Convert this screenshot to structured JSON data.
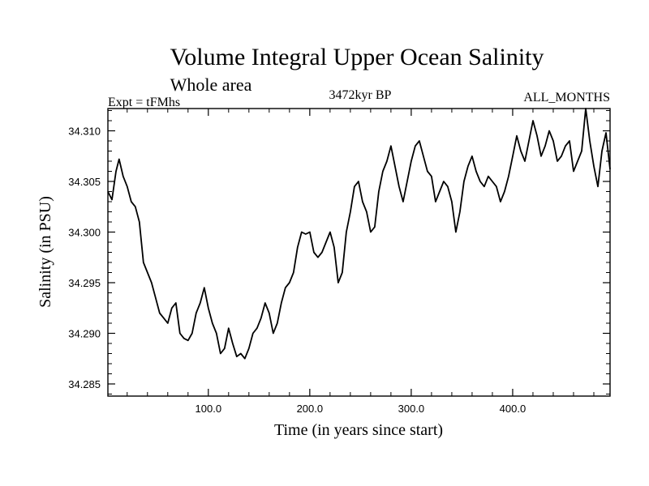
{
  "chart_data": {
    "type": "line",
    "title": "Volume Integral Upper Ocean Salinity",
    "subtitle": "Whole area",
    "annotations": {
      "left": "Expt = tFMhs",
      "center": "3472kyr BP",
      "right": "ALL_MONTHS"
    },
    "xlabel": "Time (in years since start)",
    "ylabel": "Salinity (in PSU)",
    "xlim": [
      1,
      496
    ],
    "ylim": [
      34.2838,
      34.3122
    ],
    "x_ticks": [
      100,
      200,
      300,
      400
    ],
    "x_tick_labels": [
      "100.0",
      "200.0",
      "300.0",
      "400.0"
    ],
    "y_ticks": [
      34.285,
      34.29,
      34.295,
      34.3,
      34.305,
      34.31
    ],
    "y_tick_labels": [
      "34.285",
      "34.290",
      "34.295",
      "34.300",
      "34.305",
      "34.310"
    ],
    "grid": false,
    "series": [
      {
        "name": "Salinity",
        "color": "#000000",
        "x": [
          1,
          5,
          9,
          12,
          16,
          20,
          24,
          28,
          32,
          36,
          40,
          44,
          48,
          52,
          56,
          60,
          64,
          68,
          72,
          76,
          80,
          84,
          88,
          92,
          96,
          100,
          104,
          108,
          112,
          116,
          120,
          124,
          128,
          132,
          136,
          140,
          144,
          148,
          152,
          156,
          160,
          164,
          168,
          172,
          176,
          180,
          184,
          188,
          192,
          196,
          200,
          204,
          208,
          212,
          216,
          220,
          224,
          228,
          232,
          236,
          240,
          244,
          248,
          252,
          256,
          260,
          264,
          268,
          272,
          276,
          280,
          284,
          288,
          292,
          296,
          300,
          304,
          308,
          312,
          316,
          320,
          324,
          328,
          332,
          336,
          340,
          344,
          348,
          352,
          356,
          360,
          364,
          368,
          372,
          376,
          380,
          384,
          388,
          392,
          396,
          400,
          404,
          408,
          412,
          416,
          420,
          424,
          428,
          432,
          436,
          440,
          444,
          448,
          452,
          456,
          460,
          464,
          468,
          472,
          476,
          480,
          484,
          488,
          492,
          496
        ],
        "values": [
          34.304,
          34.3032,
          34.306,
          34.3072,
          34.3055,
          34.3045,
          34.303,
          34.3025,
          34.301,
          34.297,
          34.296,
          34.295,
          34.2935,
          34.292,
          34.2915,
          34.291,
          34.2925,
          34.293,
          34.29,
          34.2895,
          34.2893,
          34.29,
          34.292,
          34.293,
          34.2945,
          34.2925,
          34.291,
          34.29,
          34.288,
          34.2885,
          34.2905,
          34.289,
          34.2877,
          34.288,
          34.2875,
          34.2885,
          34.29,
          34.2905,
          34.2915,
          34.293,
          34.292,
          34.29,
          34.291,
          34.293,
          34.2945,
          34.295,
          34.296,
          34.2985,
          34.3,
          34.2998,
          34.3,
          34.298,
          34.2975,
          34.298,
          34.299,
          34.3,
          34.2985,
          34.295,
          34.296,
          34.3,
          34.302,
          34.3045,
          34.305,
          34.303,
          34.302,
          34.3,
          34.3005,
          34.304,
          34.306,
          34.307,
          34.3085,
          34.3065,
          34.3045,
          34.303,
          34.305,
          34.307,
          34.3085,
          34.309,
          34.3075,
          34.306,
          34.3055,
          34.303,
          34.304,
          34.305,
          34.3045,
          34.303,
          34.3,
          34.302,
          34.305,
          34.3065,
          34.3075,
          34.306,
          34.305,
          34.3045,
          34.3055,
          34.305,
          34.3045,
          34.303,
          34.304,
          34.3055,
          34.3075,
          34.3095,
          34.308,
          34.307,
          34.309,
          34.311,
          34.3095,
          34.3075,
          34.3085,
          34.31,
          34.309,
          34.307,
          34.3075,
          34.3085,
          34.309,
          34.306,
          34.307,
          34.308,
          34.3122,
          34.309,
          34.3065,
          34.3045,
          34.308,
          34.3098,
          34.3062
        ]
      }
    ]
  }
}
